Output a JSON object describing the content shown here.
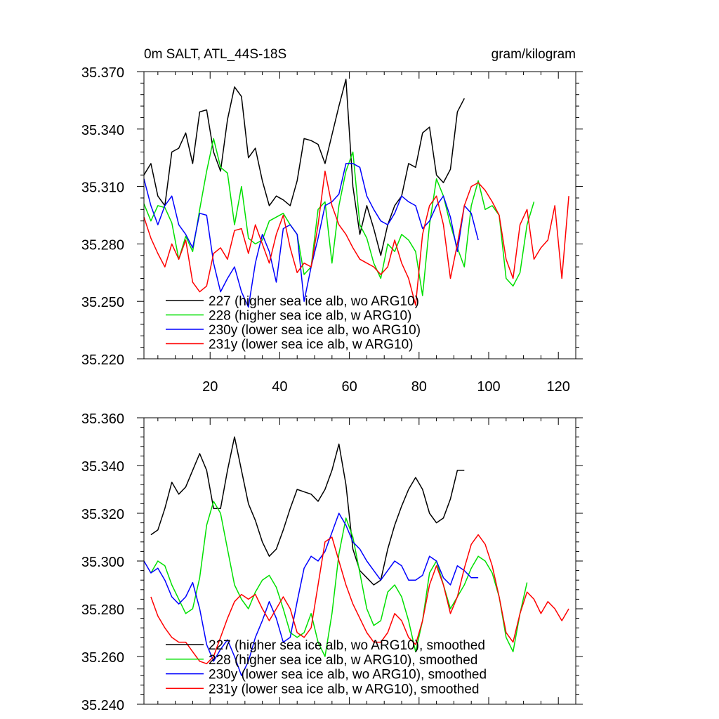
{
  "colors": {
    "227": "#000000",
    "228": "#00e000",
    "230y": "#0000ff",
    "231y": "#ff0000"
  },
  "chart_data": [
    {
      "type": "line",
      "title": "0m SALT, ATL_44S-18S",
      "units": "gram/kilogram",
      "xlim": [
        1,
        125
      ],
      "ylim": [
        35.22,
        35.37
      ],
      "xticks": [
        20,
        40,
        60,
        80,
        100,
        120
      ],
      "xtick_labels": [
        "20",
        "40",
        "60",
        "80",
        "100",
        "120"
      ],
      "yticks": [
        35.22,
        35.25,
        35.28,
        35.31,
        35.34,
        35.37
      ],
      "ytick_labels": [
        "35.220",
        "35.250",
        "35.280",
        "35.310",
        "35.340",
        "35.370"
      ],
      "legend_position": "bottom-left",
      "legend": [
        "227 (higher sea ice alb, wo ARG10)",
        "228 (higher sea ice alb, w ARG10)",
        "230y (lower sea ice alb, wo ARG10)",
        "231y (lower sea ice alb, w ARG10)"
      ],
      "series": [
        {
          "name": "227",
          "x": [
            1,
            3,
            5,
            7,
            9,
            11,
            13,
            15,
            17,
            19,
            21,
            23,
            25,
            27,
            29,
            31,
            33,
            35,
            37,
            39,
            41,
            43,
            45,
            47,
            49,
            51,
            53,
            55,
            57,
            59,
            61,
            63,
            65,
            67,
            69,
            71,
            73,
            75,
            77,
            79,
            81,
            83,
            85,
            87,
            89,
            91,
            93
          ],
          "values": [
            35.316,
            35.322,
            35.305,
            35.3,
            35.328,
            35.33,
            35.338,
            35.322,
            35.349,
            35.35,
            35.328,
            35.318,
            35.345,
            35.362,
            35.357,
            35.325,
            35.33,
            35.313,
            35.3,
            35.305,
            35.303,
            35.3,
            35.313,
            35.335,
            35.334,
            35.332,
            35.322,
            35.337,
            35.352,
            35.366,
            35.31,
            35.285,
            35.3,
            35.288,
            35.274,
            35.29,
            35.3,
            35.305,
            35.322,
            35.32,
            35.338,
            35.341,
            35.316,
            35.312,
            35.319,
            35.349,
            35.356
          ]
        },
        {
          "name": "228",
          "x": [
            1,
            3,
            5,
            7,
            9,
            11,
            13,
            15,
            17,
            19,
            21,
            23,
            25,
            27,
            29,
            31,
            33,
            35,
            37,
            39,
            41,
            43,
            45,
            47,
            49,
            51,
            53,
            55,
            57,
            59,
            61,
            63,
            65,
            67,
            69,
            71,
            73,
            75,
            77,
            79,
            81,
            83,
            85,
            87,
            89,
            91,
            93,
            95,
            97,
            99,
            101,
            103,
            105,
            107,
            109,
            111,
            113
          ],
          "values": [
            35.301,
            35.292,
            35.3,
            35.299,
            35.291,
            35.272,
            35.284,
            35.276,
            35.298,
            35.318,
            35.335,
            35.32,
            35.317,
            35.29,
            35.31,
            35.283,
            35.28,
            35.282,
            35.292,
            35.294,
            35.296,
            35.29,
            35.285,
            35.264,
            35.268,
            35.298,
            35.302,
            35.27,
            35.3,
            35.318,
            35.328,
            35.29,
            35.283,
            35.27,
            35.262,
            35.28,
            35.276,
            35.285,
            35.282,
            35.276,
            35.253,
            35.29,
            35.314,
            35.305,
            35.29,
            35.278,
            35.268,
            35.3,
            35.313,
            35.298,
            35.3,
            35.295,
            35.262,
            35.258,
            35.265,
            35.29,
            35.302
          ]
        },
        {
          "name": "230y",
          "x": [
            1,
            3,
            5,
            7,
            9,
            11,
            13,
            15,
            17,
            19,
            21,
            23,
            25,
            27,
            29,
            31,
            33,
            35,
            37,
            39,
            41,
            43,
            45,
            47,
            49,
            51,
            53,
            55,
            57,
            59,
            61,
            63,
            65,
            67,
            69,
            71,
            73,
            75,
            77,
            79,
            81,
            83,
            85,
            87,
            89,
            91,
            93,
            95,
            97
          ],
          "values": [
            35.314,
            35.3,
            35.29,
            35.3,
            35.305,
            35.29,
            35.285,
            35.278,
            35.296,
            35.295,
            35.27,
            35.255,
            35.262,
            35.268,
            35.255,
            35.247,
            35.27,
            35.285,
            35.276,
            35.26,
            35.288,
            35.29,
            35.285,
            35.25,
            35.268,
            35.283,
            35.3,
            35.302,
            35.306,
            35.322,
            35.322,
            35.32,
            35.305,
            35.298,
            35.292,
            35.29,
            35.296,
            35.305,
            35.302,
            35.3,
            35.288,
            35.292,
            35.3,
            35.305,
            35.294,
            35.276,
            35.3,
            35.296,
            35.282
          ]
        },
        {
          "name": "231y",
          "x": [
            1,
            3,
            5,
            7,
            9,
            11,
            13,
            15,
            17,
            19,
            21,
            23,
            25,
            27,
            29,
            31,
            33,
            35,
            37,
            39,
            41,
            43,
            45,
            47,
            49,
            51,
            53,
            55,
            57,
            59,
            61,
            63,
            65,
            67,
            69,
            71,
            73,
            75,
            77,
            79,
            81,
            83,
            85,
            87,
            89,
            91,
            93,
            95,
            97,
            99,
            101,
            103,
            105,
            107,
            109,
            111,
            113,
            115,
            117,
            119,
            121,
            123
          ],
          "values": [
            35.294,
            35.283,
            35.275,
            35.268,
            35.28,
            35.272,
            35.282,
            35.26,
            35.255,
            35.258,
            35.275,
            35.278,
            35.272,
            35.287,
            35.288,
            35.275,
            35.29,
            35.28,
            35.27,
            35.285,
            35.295,
            35.278,
            35.265,
            35.27,
            35.268,
            35.29,
            35.318,
            35.3,
            35.29,
            35.285,
            35.278,
            35.272,
            35.27,
            35.268,
            35.264,
            35.268,
            35.282,
            35.27,
            35.262,
            35.248,
            35.285,
            35.3,
            35.305,
            35.29,
            35.262,
            35.28,
            35.3,
            35.31,
            35.312,
            35.308,
            35.302,
            35.295,
            35.272,
            35.262,
            35.29,
            35.298,
            35.272,
            35.278,
            35.282,
            35.3,
            35.262,
            35.305
          ]
        }
      ]
    },
    {
      "type": "line",
      "title": "",
      "xlim": [
        1,
        125
      ],
      "ylim": [
        35.24,
        35.36
      ],
      "xticks": [
        20,
        40,
        60,
        80,
        100,
        120
      ],
      "xtick_labels": [],
      "yticks": [
        35.24,
        35.26,
        35.28,
        35.3,
        35.32,
        35.34,
        35.36
      ],
      "ytick_labels": [
        "35.240",
        "35.260",
        "35.280",
        "35.300",
        "35.320",
        "35.340",
        "35.360"
      ],
      "legend_position": "bottom-left",
      "legend": [
        "227 (higher sea ice alb, wo ARG10), smoothed",
        "228 (higher sea ice alb, w ARG10), smoothed",
        "230y (lower sea ice alb, wo ARG10), smoothed",
        "231y (lower sea ice alb, w ARG10), smoothed"
      ],
      "series": [
        {
          "name": "227",
          "x": [
            3,
            5,
            7,
            9,
            11,
            13,
            15,
            17,
            19,
            21,
            23,
            25,
            27,
            29,
            31,
            33,
            35,
            37,
            39,
            41,
            43,
            45,
            47,
            49,
            51,
            53,
            55,
            57,
            59,
            61,
            63,
            65,
            67,
            69,
            71,
            73,
            75,
            77,
            79,
            81,
            83,
            85,
            87,
            89,
            91,
            93
          ],
          "values": [
            35.311,
            35.313,
            35.322,
            35.333,
            35.328,
            35.331,
            35.338,
            35.345,
            35.338,
            35.322,
            35.322,
            35.338,
            35.352,
            35.338,
            35.324,
            35.317,
            35.308,
            35.302,
            35.305,
            35.313,
            35.322,
            35.33,
            35.329,
            35.328,
            35.325,
            35.33,
            35.338,
            35.349,
            35.332,
            35.305,
            35.296,
            35.293,
            35.29,
            35.292,
            35.305,
            35.315,
            35.323,
            35.33,
            35.335,
            35.33,
            35.32,
            35.316,
            35.318,
            35.326,
            35.338,
            35.338
          ]
        },
        {
          "name": "228",
          "x": [
            3,
            5,
            7,
            9,
            11,
            13,
            15,
            17,
            19,
            21,
            23,
            25,
            27,
            29,
            31,
            33,
            35,
            37,
            39,
            41,
            43,
            45,
            47,
            49,
            51,
            53,
            55,
            57,
            59,
            61,
            63,
            65,
            67,
            69,
            71,
            73,
            75,
            77,
            79,
            81,
            83,
            85,
            87,
            89,
            91,
            93,
            95,
            97,
            99,
            101,
            103,
            105,
            107,
            109,
            111
          ],
          "values": [
            35.295,
            35.3,
            35.298,
            35.29,
            35.284,
            35.278,
            35.28,
            35.293,
            35.315,
            35.325,
            35.32,
            35.305,
            35.29,
            35.284,
            35.28,
            35.287,
            35.292,
            35.294,
            35.289,
            35.28,
            35.27,
            35.268,
            35.27,
            35.278,
            35.266,
            35.26,
            35.278,
            35.303,
            35.318,
            35.31,
            35.295,
            35.28,
            35.273,
            35.275,
            35.287,
            35.29,
            35.285,
            35.275,
            35.262,
            35.275,
            35.295,
            35.3,
            35.29,
            35.28,
            35.285,
            35.29,
            35.297,
            35.302,
            35.3,
            35.295,
            35.285,
            35.268,
            35.262,
            35.278,
            35.291
          ]
        },
        {
          "name": "230y",
          "x": [
            1,
            3,
            5,
            7,
            9,
            11,
            13,
            15,
            17,
            19,
            21,
            23,
            25,
            27,
            29,
            31,
            33,
            35,
            37,
            39,
            41,
            43,
            45,
            47,
            49,
            51,
            53,
            55,
            57,
            59,
            61,
            63,
            65,
            67,
            69,
            71,
            73,
            75,
            77,
            79,
            81,
            83,
            85,
            87,
            89,
            91,
            93,
            95,
            97
          ],
          "values": [
            35.3,
            35.295,
            35.297,
            35.292,
            35.285,
            35.282,
            35.285,
            35.291,
            35.28,
            35.265,
            35.258,
            35.263,
            35.267,
            35.26,
            35.252,
            35.258,
            35.268,
            35.275,
            35.283,
            35.276,
            35.266,
            35.268,
            35.283,
            35.297,
            35.302,
            35.3,
            35.304,
            35.312,
            35.32,
            35.315,
            35.308,
            35.305,
            35.3,
            35.296,
            35.292,
            35.296,
            35.3,
            35.298,
            35.292,
            35.292,
            35.294,
            35.302,
            35.3,
            35.293,
            35.29,
            35.298,
            35.296,
            35.293,
            35.293
          ]
        },
        {
          "name": "231y",
          "x": [
            3,
            5,
            7,
            9,
            11,
            13,
            15,
            17,
            19,
            21,
            23,
            25,
            27,
            29,
            31,
            33,
            35,
            37,
            39,
            41,
            43,
            45,
            47,
            49,
            51,
            53,
            55,
            57,
            59,
            61,
            63,
            65,
            67,
            69,
            71,
            73,
            75,
            77,
            79,
            81,
            83,
            85,
            87,
            89,
            91,
            93,
            95,
            97,
            99,
            101,
            103,
            105,
            107,
            109,
            111,
            113,
            115,
            117,
            119,
            121,
            123
          ],
          "values": [
            35.285,
            35.277,
            35.272,
            35.268,
            35.266,
            35.266,
            35.262,
            35.258,
            35.257,
            35.26,
            35.268,
            35.276,
            35.283,
            35.286,
            35.284,
            35.286,
            35.28,
            35.275,
            35.28,
            35.285,
            35.28,
            35.27,
            35.268,
            35.272,
            35.29,
            35.308,
            35.31,
            35.3,
            35.29,
            35.282,
            35.276,
            35.27,
            35.266,
            35.266,
            35.27,
            35.278,
            35.275,
            35.268,
            35.265,
            35.275,
            35.29,
            35.298,
            35.29,
            35.278,
            35.285,
            35.297,
            35.307,
            35.311,
            35.307,
            35.298,
            35.285,
            35.27,
            35.266,
            35.278,
            35.287,
            35.284,
            35.278,
            35.283,
            35.28,
            35.275,
            35.28
          ]
        }
      ]
    }
  ]
}
